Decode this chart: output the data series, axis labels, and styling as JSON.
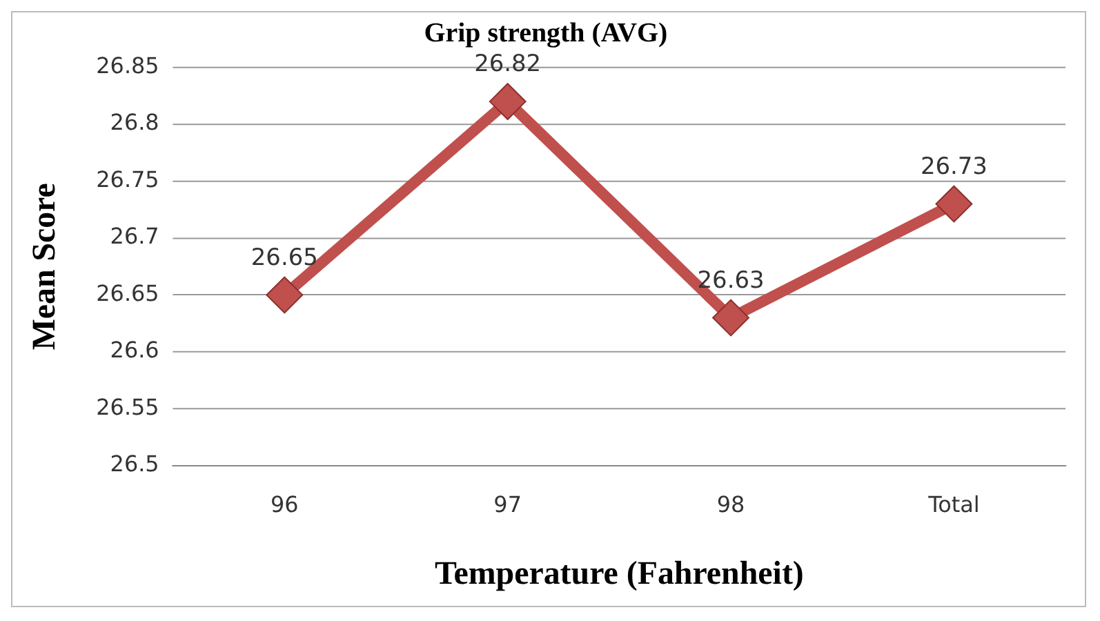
{
  "chart_data": {
    "type": "line",
    "title": "Grip strength (AVG)",
    "xlabel": "Temperature (Fahrenheit)",
    "ylabel": "Mean Score",
    "categories": [
      "96",
      "97",
      "98",
      "Total"
    ],
    "series": [
      {
        "color": "#c0504d",
        "values": [
          26.65,
          26.82,
          26.63,
          26.73
        ]
      }
    ],
    "ylim": [
      26.5,
      26.85
    ],
    "yticks": [
      26.5,
      26.55,
      26.6,
      26.65,
      26.7,
      26.75,
      26.8,
      26.85
    ],
    "grid": "y",
    "legend": false,
    "marker": "diamond",
    "line_style": "solid",
    "data_labels": true
  }
}
